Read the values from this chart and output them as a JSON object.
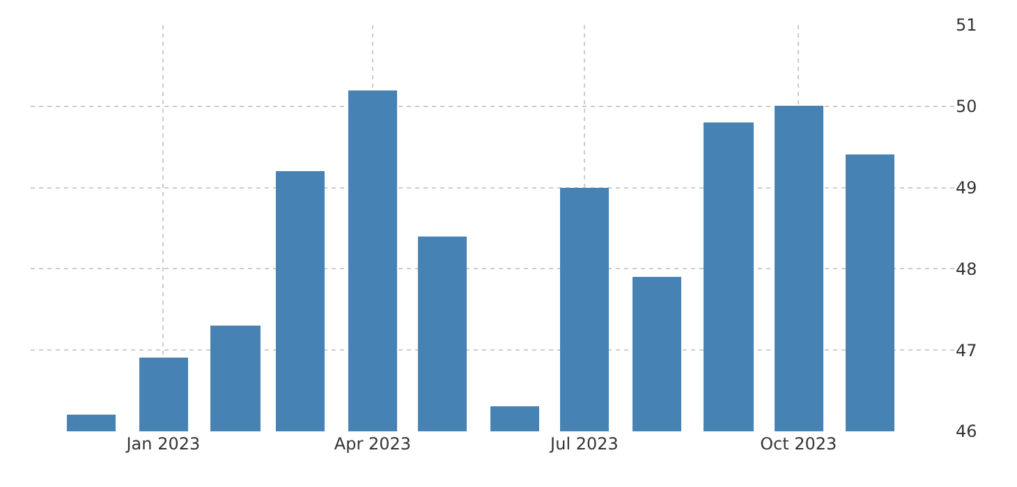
{
  "chart_data": {
    "type": "bar",
    "x": [
      "2022-12",
      "2023-01",
      "2023-02",
      "2023-03",
      "2023-04",
      "2023-05",
      "2023-06",
      "2023-07",
      "2023-08",
      "2023-09",
      "2023-10",
      "2023-11"
    ],
    "values": [
      46.2,
      46.9,
      47.3,
      49.2,
      50.2,
      48.4,
      46.3,
      49.0,
      47.9,
      49.8,
      50.0,
      49.4
    ],
    "color": "#4682b4",
    "xlim": [
      "2022-11-05",
      "2023-12-07"
    ],
    "xticks": [
      {
        "value": "2023-01",
        "label": "Jan 2023"
      },
      {
        "value": "2023-04",
        "label": "Apr 2023"
      },
      {
        "value": "2023-07",
        "label": "Jul 2023"
      },
      {
        "value": "2023-10",
        "label": "Oct 2023"
      }
    ],
    "ylim": [
      46,
      51
    ],
    "yticks": [
      46,
      47,
      48,
      49,
      50,
      51
    ],
    "grid": true,
    "legend": false
  }
}
